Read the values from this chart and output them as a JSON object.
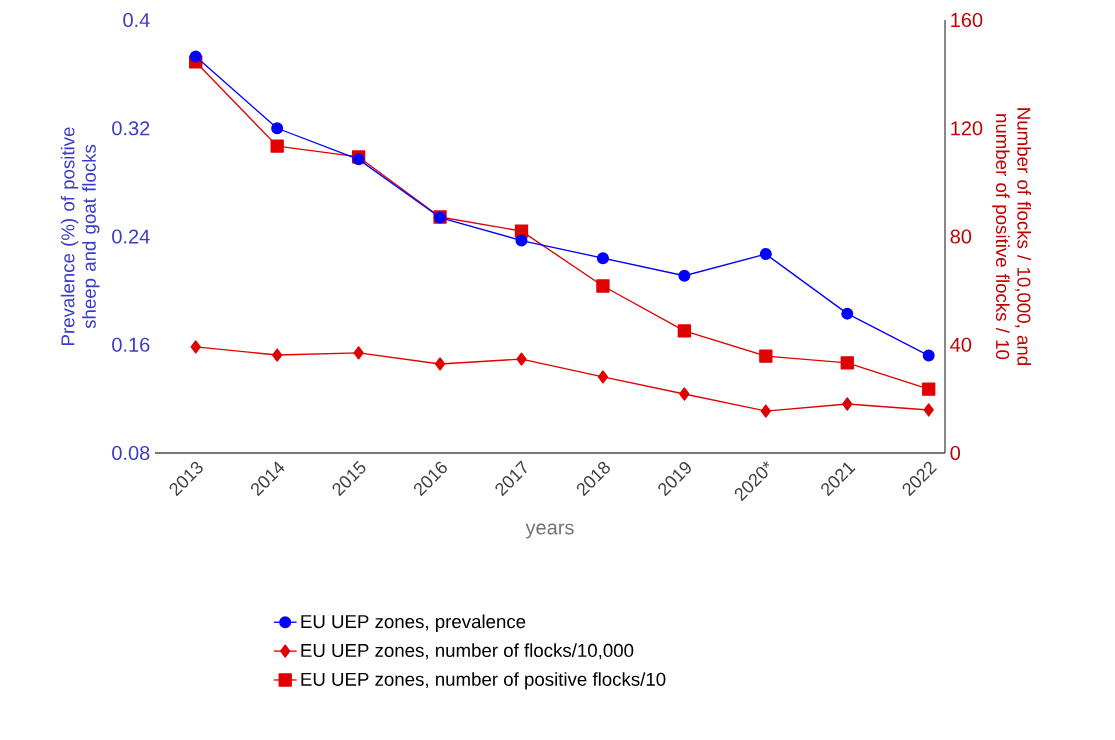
{
  "chart_data": {
    "type": "line",
    "xlabel": "years",
    "ylabel": "Prevalence (%) of positive sheep and goat flocks",
    "y2label": "Number of flocks / 10,000, and number of positive flocks / 10",
    "categories": [
      "2013",
      "2014",
      "2015",
      "2016",
      "2017",
      "2018",
      "2019",
      "2020*",
      "2021",
      "2022"
    ],
    "ylim": [
      0.08,
      0.4
    ],
    "yticks": [
      0.08,
      0.16,
      0.24,
      0.32,
      0.4
    ],
    "y2lim": [
      0,
      160
    ],
    "y2ticks": [
      0,
      40,
      80,
      120,
      160
    ],
    "legend": "bottom",
    "line_style": "solid",
    "series": [
      {
        "name": "EU UEP zones, prevalence",
        "color": "#0000ff",
        "marker": "circle",
        "values": [
          0.373,
          0.32,
          0.297,
          0.254,
          0.237,
          0.224,
          0.211,
          0.227,
          0.183,
          0.152
        ]
      },
      {
        "name": "EU UEP zones, number of flocks/10,000",
        "color": "#e00000",
        "marker": "diamond",
        "axis": "y2",
        "values": [
          39.2,
          36.2,
          37.0,
          32.9,
          34.7,
          28.1,
          21.8,
          15.5,
          18.1,
          15.9
        ]
      },
      {
        "name": "EU UEP zones, number of positive flocks/10",
        "color": "#e00000",
        "marker": "square",
        "axis": "y2",
        "values": [
          144.5,
          113.4,
          109.4,
          87.2,
          82.0,
          61.7,
          45.1,
          35.8,
          33.3,
          23.6
        ]
      }
    ]
  }
}
